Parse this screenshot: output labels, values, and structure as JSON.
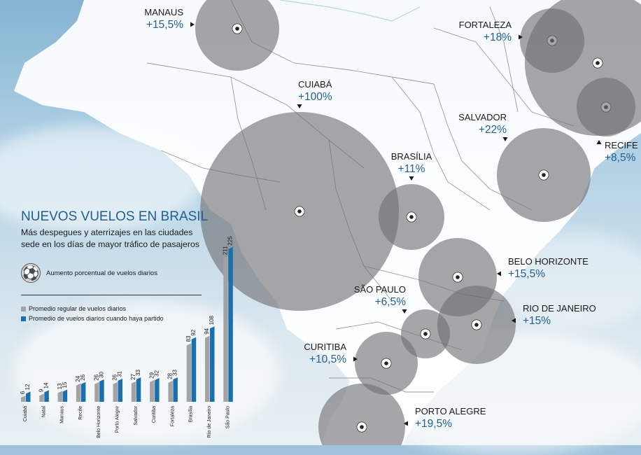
{
  "title": "NUEVOS VUELOS EN BRASIL",
  "subtitle": "Más despegues y aterrizajes en las ciudades sede en los días de mayor tráfico de pasajeros",
  "key_label": "Aumento porcentual de vuelos diarios",
  "key_icon": "soccer-ball-icon",
  "legend": [
    {
      "label": "Promedio regular de vuelos diarios",
      "color": "#a3a3a3"
    },
    {
      "label": "Promedio de vuelos diarios cuando haya partido",
      "color": "#1a6fae"
    }
  ],
  "chart_data": [
    {
      "type": "bar",
      "categories": [
        "Cuiabá",
        "Natal",
        "Manaus",
        "Recife",
        "Belo Horizonte",
        "Porto Alegre",
        "Salvador",
        "Curitiba",
        "Fortaleza",
        "Brasília",
        "Río de Janeiro",
        "São Paulo"
      ],
      "series": [
        {
          "name": "Promedio regular de vuelos diarios",
          "values": [
            6,
            9,
            13,
            24,
            26,
            26,
            27,
            29,
            28,
            83,
            94,
            211
          ]
        },
        {
          "name": "Promedio de vuelos diarios cuando haya partido",
          "values": [
            12,
            14,
            15,
            26,
            30,
            31,
            33,
            32,
            33,
            92,
            108,
            225
          ]
        }
      ],
      "ylim": [
        0,
        235
      ],
      "data_labels": true,
      "grid": false,
      "legend": "top-left"
    },
    {
      "type": "bubble-map",
      "points": [
        {
          "city": "MANAUS",
          "increase": "+15,5%",
          "value": 15.5
        },
        {
          "city": "CUIABÁ",
          "increase": "+100%",
          "value": 100
        },
        {
          "city": "FORTALEZA",
          "increase": "+18%",
          "value": 18
        },
        {
          "city": "SALVADOR",
          "increase": "+22%",
          "value": 22
        },
        {
          "city": "RECIFE",
          "increase": "+8,5%",
          "value": 8.5
        },
        {
          "city": "BRASÍLIA",
          "increase": "+11%",
          "value": 11
        },
        {
          "city": "BELO HORIZONTE",
          "increase": "+15,5%",
          "value": 15.5
        },
        {
          "city": "SÃO PAULO",
          "increase": "+6,5%",
          "value": 6.5
        },
        {
          "city": "RIO DE JANEIRO",
          "increase": "+15%",
          "value": 15
        },
        {
          "city": "CURITIBA",
          "increase": "+10,5%",
          "value": 10.5
        },
        {
          "city": "PORTO ALEGRE",
          "increase": "+19,5%",
          "value": 19.5
        },
        {
          "city": "",
          "increase": "",
          "value": null
        }
      ]
    }
  ],
  "colors": {
    "bubble": "#6f6f73",
    "city_label": "#1a1a1a",
    "increase_label": "#1f5f95",
    "map_land": "#ffffff",
    "map_border": "#9a9a9a"
  }
}
